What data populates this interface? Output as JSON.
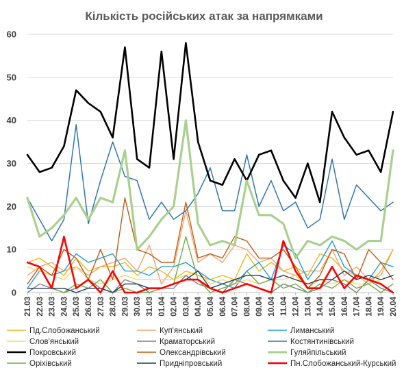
{
  "chart_data": {
    "type": "line",
    "title": "Кількість російських атак за напрямками",
    "xlabel": "",
    "ylabel": "",
    "ylim": [
      0,
      60
    ],
    "yticks": [
      0,
      10,
      20,
      30,
      40,
      50,
      60
    ],
    "grid": true,
    "legend_position": "bottom",
    "categories": [
      "21.03",
      "22.03",
      "23.03",
      "24.03",
      "25.03",
      "26.03",
      "27.03",
      "28.03",
      "29.03",
      "30.03",
      "31.03",
      "01.04",
      "02.04",
      "03.04",
      "04.04",
      "05.04",
      "06.04",
      "07.04",
      "08.04",
      "09.04",
      "10.04",
      "11.04",
      "12.04",
      "13.04",
      "14.04",
      "15.04",
      "16.04",
      "17.04",
      "18.04",
      "19.04",
      "20.04"
    ],
    "series": [
      {
        "name": "Пд.Слобожанський",
        "color": "#f2b619",
        "width": 1.4,
        "values": [
          7,
          8,
          6,
          4,
          8,
          5,
          6,
          6,
          7,
          4,
          6,
          5,
          3,
          5,
          4,
          3,
          4,
          3,
          9,
          5,
          7,
          5,
          6,
          4,
          9,
          8,
          5,
          4,
          2,
          5,
          10
        ]
      },
      {
        "name": "Куп'янський",
        "color": "#f4a46e",
        "width": 1.4,
        "values": [
          4,
          6,
          7,
          5,
          6,
          4,
          6,
          7,
          8,
          5,
          11,
          2,
          6,
          19,
          7,
          9,
          7,
          11,
          10,
          7,
          8,
          5,
          4,
          5,
          5,
          10,
          4,
          6,
          3,
          4,
          10
        ]
      },
      {
        "name": "Лиманський",
        "color": "#1b9ddb",
        "width": 1.4,
        "values": [
          1,
          5,
          4,
          5,
          9,
          7,
          8,
          9,
          5,
          5,
          4,
          6,
          6,
          7,
          5,
          3,
          2,
          1,
          5,
          7,
          3,
          11,
          9,
          3,
          7,
          12,
          6,
          4,
          3,
          7,
          6
        ]
      },
      {
        "name": "Слов'янський",
        "color": "#ffd75f",
        "width": 1.4,
        "values": [
          6,
          5,
          4,
          3,
          6,
          3,
          2,
          3,
          4,
          3,
          3,
          3,
          3,
          4,
          5,
          2,
          3,
          2,
          3,
          2,
          3,
          3,
          4,
          1,
          3,
          2,
          3,
          2,
          2,
          3,
          4
        ]
      },
      {
        "name": "Краматорський",
        "color": "#7f7f7f",
        "width": 1.4,
        "values": [
          0,
          2,
          1,
          0,
          1,
          3,
          1,
          0,
          3,
          2,
          0,
          1,
          1,
          4,
          2,
          1,
          0,
          3,
          2,
          1,
          0,
          2,
          1,
          0,
          1,
          3,
          2,
          0,
          3,
          1,
          0
        ]
      },
      {
        "name": "Костянтинівський",
        "color": "#2e75b6",
        "width": 1.5,
        "values": [
          22,
          17,
          12,
          17,
          39,
          16,
          26,
          35,
          27,
          26,
          17,
          21,
          17,
          19,
          23,
          29,
          19,
          19,
          32,
          20,
          26,
          19,
          21,
          15,
          17,
          31,
          17,
          25,
          22,
          19,
          21
        ]
      },
      {
        "name": "Покровський",
        "color": "#000000",
        "width": 2.6,
        "values": [
          32,
          28,
          29,
          34,
          47,
          44,
          42,
          36,
          57,
          31,
          29,
          56,
          31,
          58,
          35,
          26,
          25,
          31,
          26,
          32,
          33,
          26,
          22,
          30,
          21,
          42,
          36,
          32,
          33,
          28,
          42
        ]
      },
      {
        "name": "Олександрівський",
        "color": "#c55a11",
        "width": 1.4,
        "values": [
          2,
          6,
          4,
          10,
          8,
          3,
          10,
          3,
          22,
          10,
          9,
          7,
          7,
          21,
          8,
          9,
          8,
          13,
          12,
          8,
          8,
          10,
          6,
          1,
          4,
          10,
          9,
          3,
          10,
          7,
          3
        ]
      },
      {
        "name": "Гуляйпільський",
        "color": "#a9d18e",
        "width": 3.2,
        "values": [
          22,
          13,
          15,
          18,
          22,
          17,
          22,
          21,
          33,
          10,
          13,
          17,
          20,
          40,
          16,
          11,
          12,
          11,
          26,
          18,
          18,
          16,
          8,
          12,
          11,
          13,
          12,
          10,
          12,
          12,
          33
        ]
      },
      {
        "name": "Оріхівський",
        "color": "#70ad47",
        "width": 1.4,
        "values": [
          7,
          6,
          1,
          0,
          2,
          1,
          3,
          0,
          1,
          0,
          0,
          1,
          2,
          13,
          3,
          0,
          1,
          2,
          5,
          2,
          3,
          1,
          2,
          0,
          2,
          1,
          3,
          1,
          2,
          0,
          2
        ]
      },
      {
        "name": "Придніпровський",
        "color": "#1f3864",
        "width": 1.4,
        "values": [
          1,
          1,
          1,
          1,
          0,
          1,
          1,
          0,
          2,
          2,
          1,
          1,
          2,
          3,
          5,
          1,
          2,
          3,
          4,
          4,
          3,
          4,
          3,
          2,
          3,
          3,
          5,
          3,
          4,
          3,
          4
        ]
      },
      {
        "name": "Пн.Слобожанський-Курський",
        "color": "#ff0000",
        "width": 2.6,
        "values": [
          7,
          6,
          1,
          13,
          1,
          3,
          0,
          5,
          0,
          0,
          1,
          1,
          2,
          3,
          3,
          1,
          0,
          1,
          2,
          1,
          0,
          12,
          5,
          1,
          1,
          6,
          1,
          4,
          3,
          2,
          0
        ]
      }
    ]
  }
}
